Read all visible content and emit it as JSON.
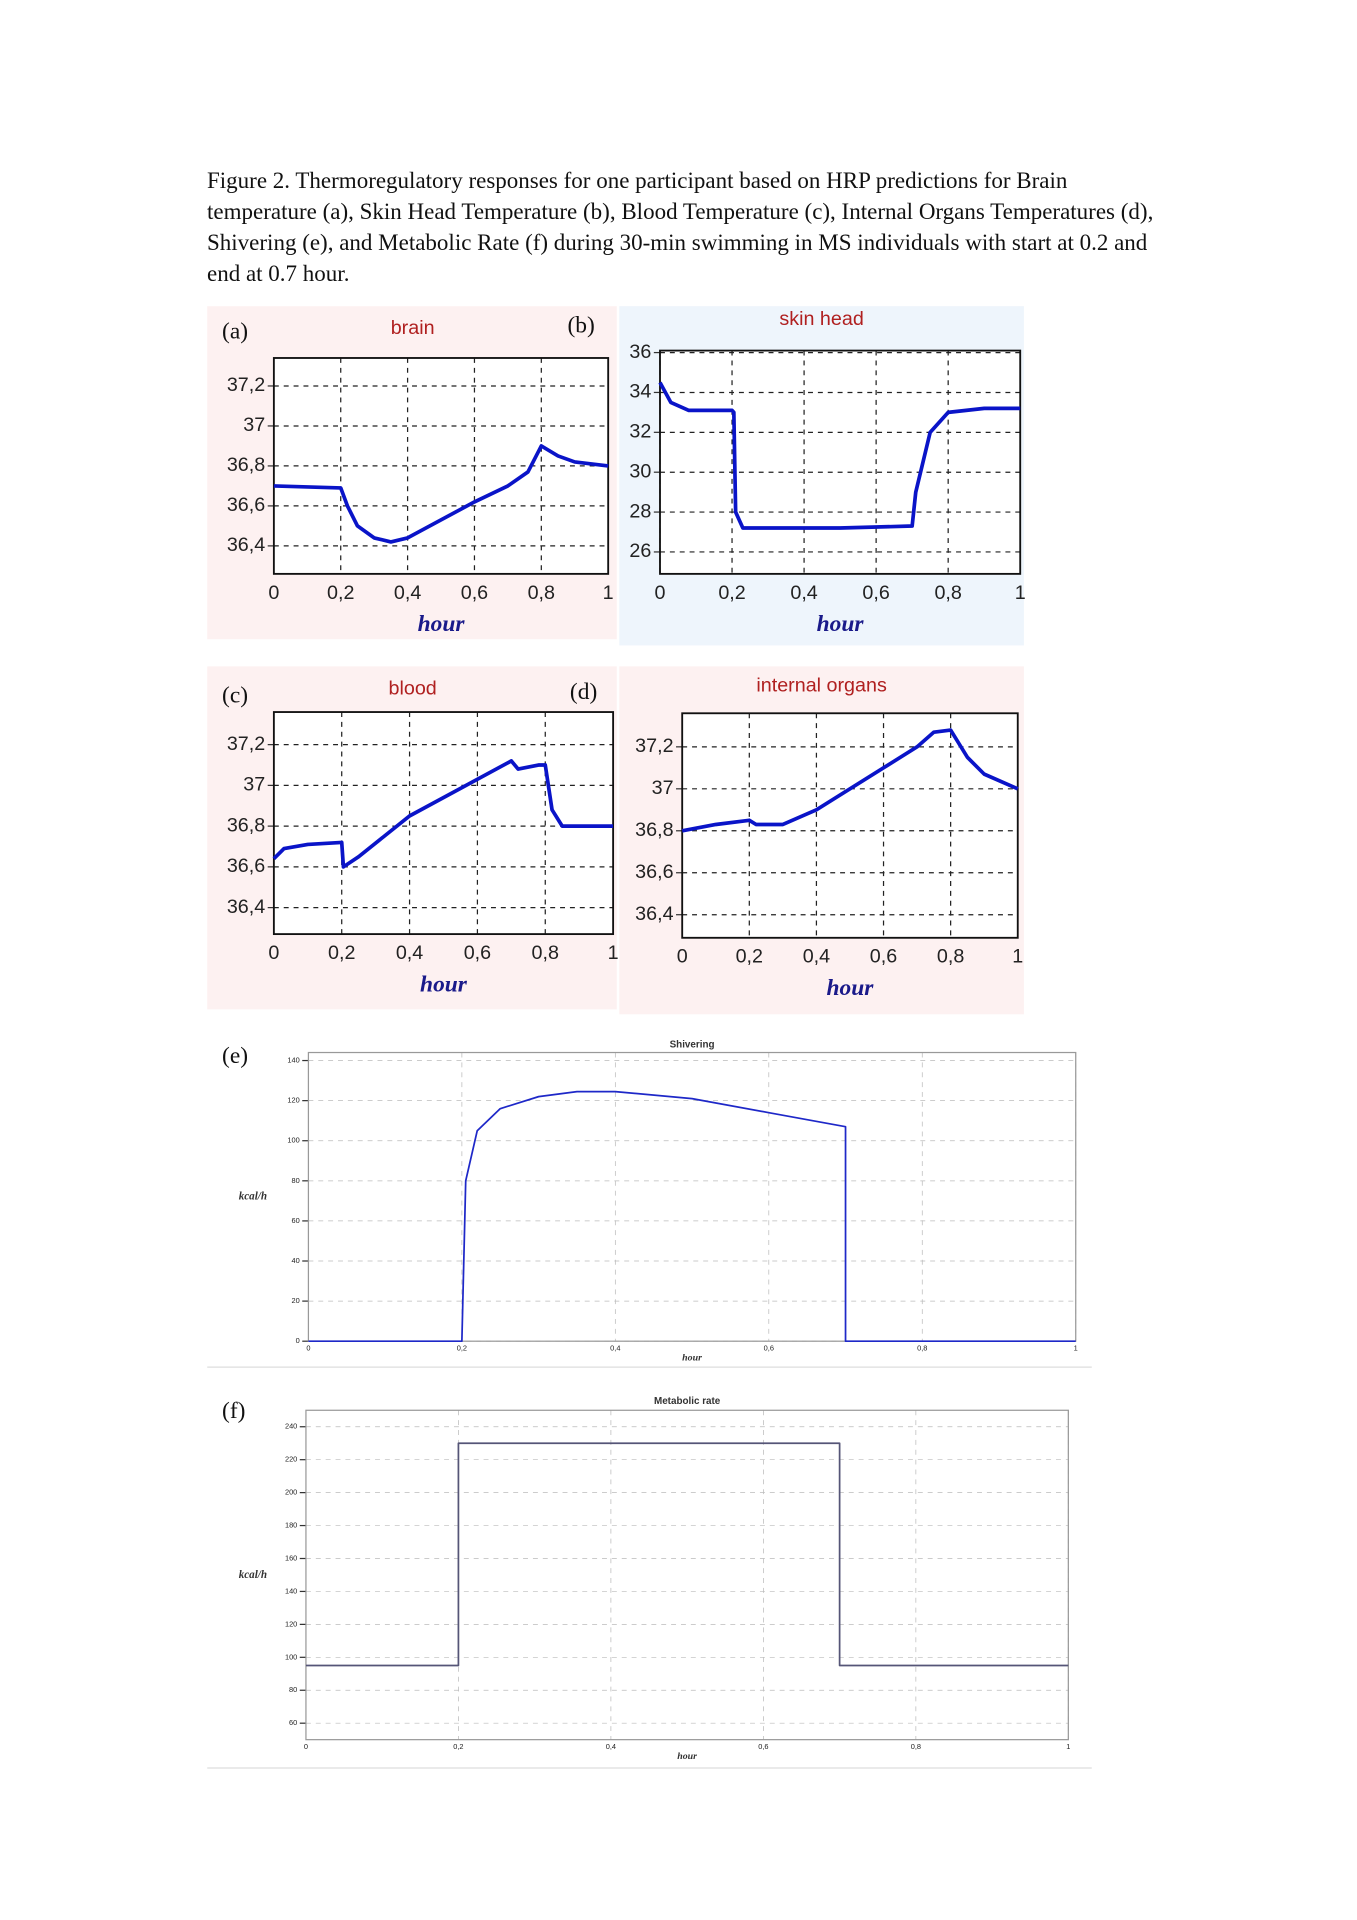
{
  "caption": "Figure 2. Thermoregulatory responses for one participant based on HRP predictions for Brain temperature (a), Skin Head Temperature (b),  Blood Temperature (c), Internal Organs Temperatures (d), Shivering (e), and Metabolic Rate (f)  during 30-min swimming in MS individuals with start at 0.2 and end at 0.7 hour.",
  "chart_data": [
    {
      "type": "line",
      "panel": "(a)",
      "title": "brain",
      "x_label": "hour",
      "x": [
        0,
        0.2,
        0.22,
        0.25,
        0.3,
        0.35,
        0.4,
        0.5,
        0.6,
        0.7,
        0.76,
        0.8,
        0.85,
        0.9,
        1
      ],
      "series": [
        {
          "color": "#0a14c8",
          "values": [
            36.7,
            36.69,
            36.6,
            36.5,
            36.44,
            36.42,
            36.44,
            36.53,
            36.62,
            36.7,
            36.77,
            36.9,
            36.85,
            36.82,
            36.8
          ]
        }
      ],
      "xlim": [
        0,
        1
      ],
      "xticks": [
        0,
        {
          "value": 0.2,
          "label": "0,2"
        },
        {
          "value": 0.4,
          "label": "0,4"
        },
        {
          "value": 0.6,
          "label": "0,6"
        },
        {
          "value": 0.8,
          "label": "0,8"
        },
        1
      ],
      "ylim": [
        36.26,
        37.34
      ],
      "yticks": [
        {
          "value": 36.4,
          "label": "36,4"
        },
        {
          "value": 36.6,
          "label": "36,6"
        },
        {
          "value": 36.8,
          "label": "36,8"
        },
        37,
        {
          "value": 37.2,
          "label": "37,2"
        }
      ],
      "grid": true
    },
    {
      "type": "line",
      "panel": "(b)",
      "title": "skin head",
      "x_label": "hour",
      "x": [
        0,
        0.03,
        0.08,
        0.2,
        0.205,
        0.21,
        0.23,
        0.5,
        0.7,
        0.71,
        0.75,
        0.8,
        0.9,
        1
      ],
      "series": [
        {
          "color": "#0a14c8",
          "values": [
            34.5,
            33.5,
            33.1,
            33.1,
            33.0,
            28,
            27.2,
            27.2,
            27.3,
            29,
            32,
            33,
            33.2,
            33.2
          ]
        }
      ],
      "xlim": [
        0,
        1
      ],
      "xticks": [
        0,
        {
          "value": 0.2,
          "label": "0,2"
        },
        {
          "value": 0.4,
          "label": "0,4"
        },
        {
          "value": 0.6,
          "label": "0,6"
        },
        {
          "value": 0.8,
          "label": "0,8"
        },
        1
      ],
      "ylim": [
        24.9,
        36.1
      ],
      "yticks": [
        26,
        28,
        30,
        32,
        34,
        36
      ],
      "grid": true
    },
    {
      "type": "line",
      "panel": "(c)",
      "title": "blood",
      "x_label": "hour",
      "x": [
        0,
        0.03,
        0.1,
        0.2,
        0.205,
        0.25,
        0.4,
        0.6,
        0.7,
        0.72,
        0.78,
        0.8,
        0.82,
        0.85,
        1
      ],
      "series": [
        {
          "color": "#0a14c8",
          "values": [
            36.64,
            36.69,
            36.71,
            36.72,
            36.6,
            36.65,
            36.85,
            37.03,
            37.12,
            37.08,
            37.1,
            37.1,
            36.88,
            36.8,
            36.8
          ]
        }
      ],
      "xlim": [
        0,
        1
      ],
      "xticks": [
        0,
        {
          "value": 0.2,
          "label": "0,2"
        },
        {
          "value": 0.4,
          "label": "0,4"
        },
        {
          "value": 0.6,
          "label": "0,6"
        },
        {
          "value": 0.8,
          "label": "0,8"
        },
        1
      ],
      "ylim": [
        36.27,
        37.36
      ],
      "yticks": [
        {
          "value": 36.4,
          "label": "36,4"
        },
        {
          "value": 36.6,
          "label": "36,6"
        },
        {
          "value": 36.8,
          "label": "36,8"
        },
        37,
        {
          "value": 37.2,
          "label": "37,2"
        }
      ],
      "grid": true
    },
    {
      "type": "line",
      "panel": "(d)",
      "title": "internal organs",
      "x_label": "hour",
      "x": [
        0,
        0.1,
        0.2,
        0.22,
        0.3,
        0.4,
        0.5,
        0.6,
        0.7,
        0.75,
        0.8,
        0.85,
        0.9,
        1
      ],
      "series": [
        {
          "color": "#0a14c8",
          "values": [
            36.8,
            36.83,
            36.85,
            36.83,
            36.83,
            36.9,
            37,
            37.1,
            37.2,
            37.27,
            37.28,
            37.15,
            37.07,
            37.0
          ]
        }
      ],
      "xlim": [
        0,
        1
      ],
      "xticks": [
        0,
        {
          "value": 0.2,
          "label": "0,2"
        },
        {
          "value": 0.4,
          "label": "0,4"
        },
        {
          "value": 0.6,
          "label": "0,6"
        },
        {
          "value": 0.8,
          "label": "0,8"
        },
        1
      ],
      "ylim": [
        36.29,
        37.36
      ],
      "yticks": [
        {
          "value": 36.4,
          "label": "36,4"
        },
        {
          "value": 36.6,
          "label": "36,6"
        },
        {
          "value": 36.8,
          "label": "36,8"
        },
        37,
        {
          "value": 37.2,
          "label": "37,2"
        }
      ],
      "grid": true
    },
    {
      "type": "line",
      "panel": "(e)",
      "title": "Shivering",
      "x_label": "hour",
      "y_label": "kcal/h",
      "x": [
        0,
        0.2,
        0.2,
        0.205,
        0.22,
        0.25,
        0.3,
        0.35,
        0.4,
        0.5,
        0.6,
        0.7,
        0.7,
        1
      ],
      "series": [
        {
          "color": "#1e28c8",
          "values": [
            0,
            0,
            0,
            80,
            105,
            116,
            122,
            124.5,
            124.5,
            121,
            114,
            107,
            0,
            0
          ]
        }
      ],
      "xlim": [
        0,
        1
      ],
      "xticks": [
        0,
        {
          "value": 0.2,
          "label": "0,2"
        },
        {
          "value": 0.4,
          "label": "0,4"
        },
        {
          "value": 0.6,
          "label": "0,6"
        },
        {
          "value": 0.8,
          "label": "0,8"
        },
        1
      ],
      "ylim": [
        0,
        144
      ],
      "yticks": [
        0,
        20,
        40,
        60,
        80,
        100,
        120,
        140
      ],
      "grid": true
    },
    {
      "type": "line",
      "panel": "(f)",
      "title": "Metabolic rate",
      "x_label": "hour",
      "y_label": "kcal/h",
      "x": [
        0,
        0.2,
        0.2,
        0.7,
        0.7,
        1
      ],
      "series": [
        {
          "color": "#555577",
          "values": [
            95,
            95,
            230,
            230,
            95,
            95
          ]
        }
      ],
      "xlim": [
        0,
        1
      ],
      "xticks": [
        0,
        {
          "value": 0.2,
          "label": "0,2"
        },
        {
          "value": 0.4,
          "label": "0,4"
        },
        {
          "value": 0.6,
          "label": "0,6"
        },
        {
          "value": 0.8,
          "label": "0,8"
        },
        1
      ],
      "ylim": [
        50,
        250
      ],
      "yticks": [
        60,
        80,
        100,
        120,
        140,
        160,
        180,
        200,
        220,
        240
      ],
      "grid": true
    }
  ]
}
